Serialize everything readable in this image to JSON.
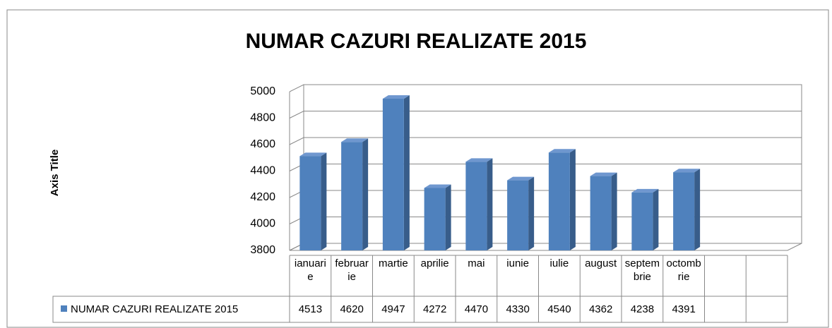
{
  "chart_data": {
    "type": "bar3d",
    "title": "NUMAR CAZURI REALIZATE 2015",
    "y_axis_label": "Axis Title",
    "categories": [
      "ianuarie",
      "februarie",
      "martie",
      "aprilie",
      "mai",
      "iunie",
      "iulie",
      "august",
      "septembrie",
      "octombrie",
      null,
      null
    ],
    "series": [
      {
        "name": "NUMAR CAZURI REALIZATE 2015",
        "color": "#4f81bd",
        "values": [
          4513,
          4620,
          4947,
          4272,
          4470,
          4330,
          4540,
          4362,
          4238,
          4391,
          null,
          null
        ]
      }
    ],
    "ylim": [
      3800,
      5000
    ],
    "yticks": [
      3800,
      4000,
      4200,
      4400,
      4600,
      4800,
      5000
    ],
    "grid": true,
    "data_table": true
  }
}
